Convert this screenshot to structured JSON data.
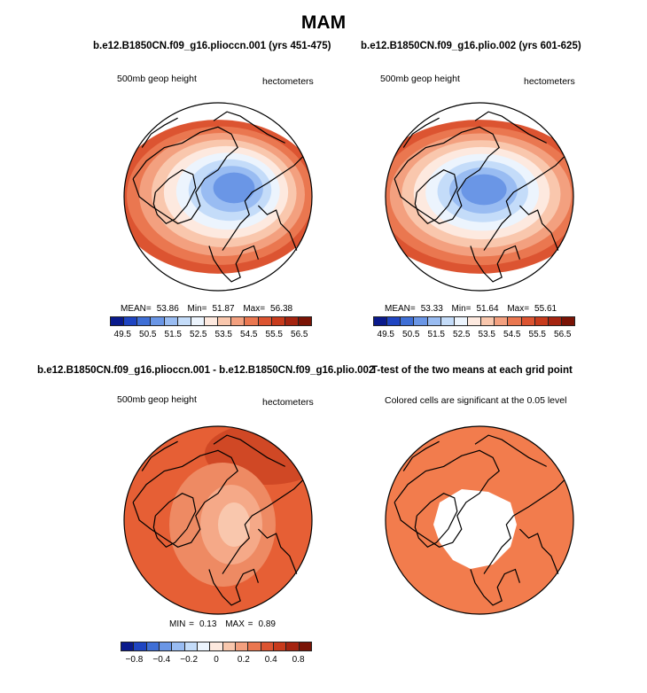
{
  "page": {
    "title": "MAM"
  },
  "panels": {
    "p1": {
      "title": "b.e12.B1850CN.f09_g16.plioccn.001 (yrs 451-475)",
      "left_label": "500mb geop height",
      "right_label": "hectometers",
      "stats": {
        "mean_label": "MEAN=",
        "mean": "53.86",
        "min_label": "Min=",
        "min": "51.87",
        "max_label": "Max=",
        "max": "56.38"
      }
    },
    "p2": {
      "title": "b.e12.B1850CN.f09_g16.plio.002 (yrs 601-625)",
      "left_label": "500mb geop height",
      "right_label": "hectometers",
      "stats": {
        "mean_label": "MEAN=",
        "mean": "53.33",
        "min_label": "Min=",
        "min": "51.64",
        "max_label": "Max=",
        "max": "55.61"
      }
    },
    "p3": {
      "title": "b.e12.B1850CN.f09_g16.plioccn.001 - b.e12.B1850CN.f09_g16.plio.002",
      "left_label": "500mb geop height",
      "right_label": "hectometers",
      "stats": {
        "min_label": "MIN =",
        "min": "0.13",
        "max_label": "MAX =",
        "max": "0.89"
      }
    },
    "p4": {
      "title": "T-test of the two means at each grid point",
      "left_label": "Colored cells are significant at the 0.05 level"
    }
  },
  "colorbars": {
    "height": {
      "ticks": [
        "49.5",
        "50.5",
        "51.5",
        "52.5",
        "53.5",
        "54.5",
        "55.5",
        "56.5"
      ],
      "colors": [
        "#0a1a8c",
        "#1f45c2",
        "#3f6fd6",
        "#6a96e6",
        "#99bcf2",
        "#c4dcf9",
        "#ecf4fd",
        "#fde9df",
        "#f9c7ad",
        "#f3a07f",
        "#ea7750",
        "#dc5431",
        "#c83b1c",
        "#a52410",
        "#7a1305"
      ]
    },
    "diff": {
      "ticks": [
        "−0.8",
        "−0.4",
        "−0.2",
        "0",
        "0.2",
        "0.4",
        "0.8"
      ],
      "colors": [
        "#0a1a8c",
        "#1f45c2",
        "#3f6fd6",
        "#6a96e6",
        "#99bcf2",
        "#c4dcf9",
        "#ecf4fd",
        "#fde9df",
        "#f9c7ad",
        "#f3a07f",
        "#ea7750",
        "#dc5431",
        "#c83b1c",
        "#a52410",
        "#7a1305"
      ]
    }
  }
}
